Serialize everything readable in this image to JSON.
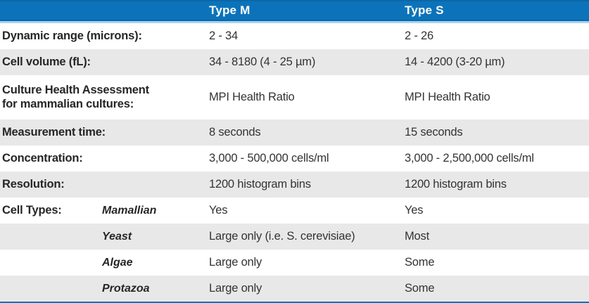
{
  "header": {
    "type_m": "Type M",
    "type_s": "Type S"
  },
  "colors": {
    "header_blue": "#0c73ba",
    "header_underline": "#a9d3ed",
    "row_shade": "#e8e8e8",
    "text": "#333333"
  },
  "rows": [
    {
      "label": "Dynamic range (microns):",
      "sub": "",
      "type_m": "2 - 34",
      "type_s": "2 - 26"
    },
    {
      "label": "Cell volume (fL):",
      "sub": "",
      "type_m": "34 - 8180 (4 - 25 µm)",
      "type_s": "14 - 4200 (3-20 µm)"
    },
    {
      "label": "Culture Health Assessment for mammalian cultures:",
      "sub": "",
      "type_m": "MPI Health Ratio",
      "type_s": "MPI Health Ratio"
    },
    {
      "label": "Measurement time:",
      "sub": "",
      "type_m": "8 seconds",
      "type_s": "15 seconds"
    },
    {
      "label": "Concentration:",
      "sub": "",
      "type_m": "3,000 - 500,000 cells/ml",
      "type_s": "3,000 - 2,500,000 cells/ml"
    },
    {
      "label": "Resolution:",
      "sub": "",
      "type_m": "1200 histogram bins",
      "type_s": "1200 histogram bins"
    },
    {
      "label": "Cell Types:",
      "sub": "Mamallian",
      "type_m": "Yes",
      "type_s": "Yes"
    },
    {
      "label": "",
      "sub": "Yeast",
      "type_m": "Large only (i.e. S. cerevisiae)",
      "type_s": "Most"
    },
    {
      "label": "",
      "sub": "Algae",
      "type_m": "Large only",
      "type_s": "Some"
    },
    {
      "label": "",
      "sub": "Protazoa",
      "type_m": "Large only",
      "type_s": "Some"
    }
  ]
}
